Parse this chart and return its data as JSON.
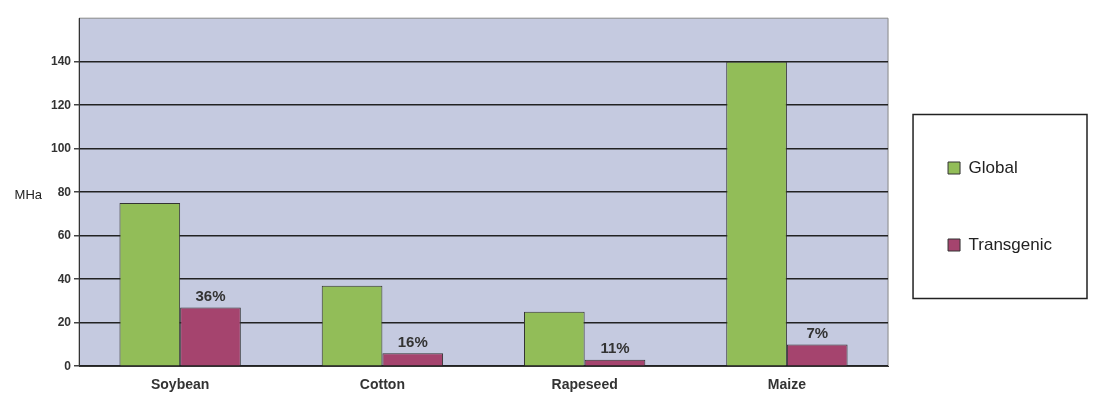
{
  "chart_data": {
    "type": "bar",
    "ylabel": "MHa",
    "categories": [
      "Soybean",
      "Cotton",
      "Rapeseed",
      "Maize"
    ],
    "series": [
      {
        "name": "Global",
        "color": "#92bd58",
        "values": [
          75,
          37,
          25,
          140
        ]
      },
      {
        "name": "Transgenic",
        "color": "#a5446e",
        "values": [
          27,
          6,
          3,
          10
        ]
      }
    ],
    "annotations": [
      {
        "text": "36%",
        "x": "Soybean",
        "y": 27
      },
      {
        "text": "16%",
        "x": "Cotton",
        "y": 6
      },
      {
        "text": "11%",
        "x": "Rapeseed",
        "y": 3
      },
      {
        "text": "7%",
        "x": "Maize",
        "y": 10
      }
    ],
    "ylim": [
      0,
      160
    ],
    "yticks": [
      0,
      20,
      40,
      60,
      80,
      100,
      120,
      140
    ],
    "grid": "y",
    "legend": "right"
  }
}
